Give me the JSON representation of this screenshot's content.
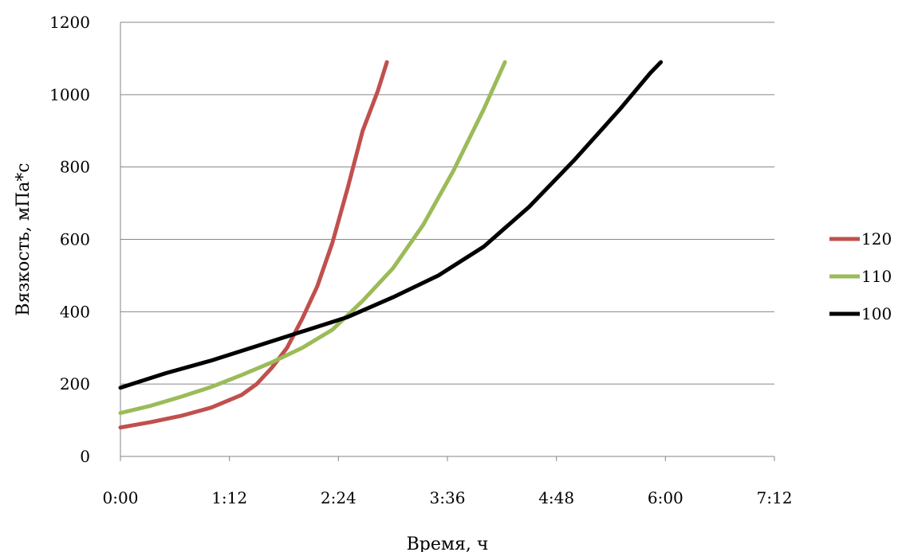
{
  "chart_data": {
    "type": "line",
    "title": "",
    "xlabel": "Время, ч",
    "ylabel": "Вязкость, мПа*с",
    "xlim_minutes": [
      0,
      432
    ],
    "ylim": [
      0,
      1200
    ],
    "x_ticks": [
      "0:00",
      "1:12",
      "2:24",
      "3:36",
      "4:48",
      "6:00",
      "7:12"
    ],
    "y_ticks": [
      "0",
      "200",
      "400",
      "600",
      "800",
      "1000",
      "1200"
    ],
    "grid": "horizontal",
    "legend_position": "right",
    "series": [
      {
        "name": "120",
        "color": "#c0504d",
        "x_minutes": [
          0,
          20,
          40,
          60,
          80,
          90,
          100,
          110,
          120,
          130,
          140,
          150,
          160,
          170,
          176
        ],
        "values": [
          80,
          95,
          112,
          135,
          170,
          200,
          245,
          300,
          380,
          470,
          590,
          740,
          900,
          1010,
          1090
        ]
      },
      {
        "name": "110",
        "color": "#9bbb59",
        "x_minutes": [
          0,
          20,
          40,
          60,
          80,
          100,
          120,
          140,
          160,
          180,
          200,
          220,
          240,
          254
        ],
        "values": [
          120,
          140,
          165,
          192,
          225,
          260,
          300,
          350,
          430,
          520,
          640,
          790,
          960,
          1090
        ]
      },
      {
        "name": "100",
        "color": "#000000",
        "x_minutes": [
          0,
          30,
          60,
          90,
          120,
          150,
          180,
          210,
          240,
          270,
          300,
          330,
          350,
          357
        ],
        "values": [
          190,
          230,
          265,
          305,
          345,
          385,
          440,
          500,
          580,
          690,
          820,
          960,
          1060,
          1090
        ]
      }
    ]
  }
}
